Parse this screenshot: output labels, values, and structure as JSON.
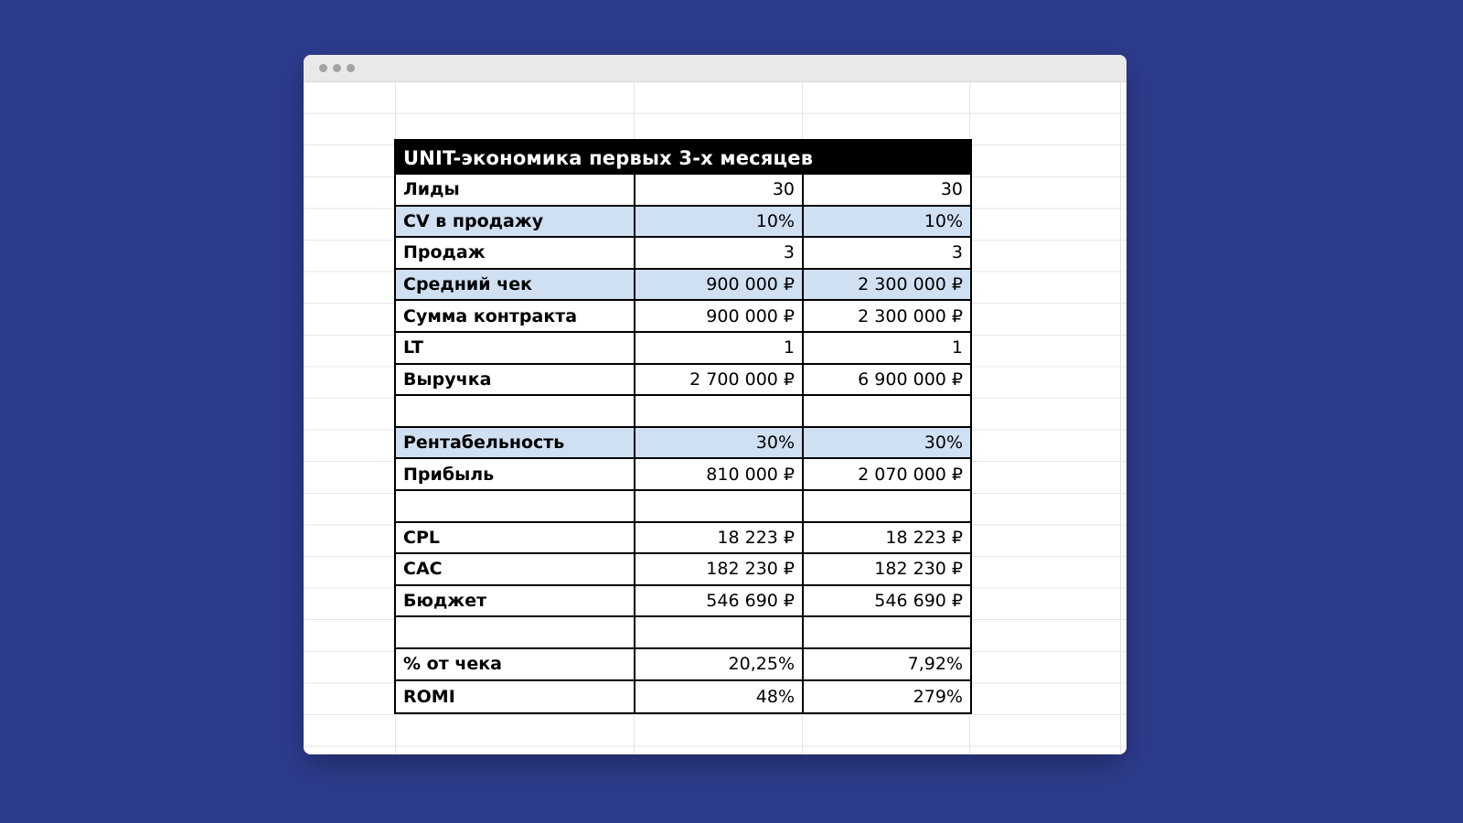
{
  "colors": {
    "desktop_background": "#2e3c8e",
    "table_header_bg": "#000000",
    "row_highlight": "#cfe0f3",
    "gridline": "#e5e5e5"
  },
  "window": {
    "titlebar_dots": 3
  },
  "table": {
    "title": "UNIT-экономика первых 3-х месяцев",
    "rows": [
      {
        "label": "Лиды",
        "v1": "30",
        "v2": "30",
        "highlight": false
      },
      {
        "label": "CV в продажу",
        "v1": "10%",
        "v2": "10%",
        "highlight": true
      },
      {
        "label": "Продаж",
        "v1": "3",
        "v2": "3",
        "highlight": false
      },
      {
        "label": "Средний чек",
        "v1": "900 000 ₽",
        "v2": "2 300 000 ₽",
        "highlight": true
      },
      {
        "label": "Сумма контракта",
        "v1": "900 000 ₽",
        "v2": "2 300 000 ₽",
        "highlight": false
      },
      {
        "label": "LT",
        "v1": "1",
        "v2": "1",
        "highlight": false
      },
      {
        "label": "Выручка",
        "v1": "2 700 000 ₽",
        "v2": "6 900 000 ₽",
        "highlight": false
      },
      {
        "label": "",
        "v1": "",
        "v2": "",
        "highlight": false
      },
      {
        "label": "Рентабельность",
        "v1": "30%",
        "v2": "30%",
        "highlight": true
      },
      {
        "label": "Прибыль",
        "v1": "810 000 ₽",
        "v2": "2 070 000 ₽",
        "highlight": false
      },
      {
        "label": "",
        "v1": "",
        "v2": "",
        "highlight": false
      },
      {
        "label": "CPL",
        "v1": "18 223 ₽",
        "v2": "18 223 ₽",
        "highlight": false
      },
      {
        "label": "CAC",
        "v1": "182 230 ₽",
        "v2": "182 230 ₽",
        "highlight": false
      },
      {
        "label": "Бюджет",
        "v1": "546 690 ₽",
        "v2": "546 690 ₽",
        "highlight": false
      },
      {
        "label": "",
        "v1": "",
        "v2": "",
        "highlight": false
      },
      {
        "label": "% от чека",
        "v1": "20,25%",
        "v2": "7,92%",
        "highlight": false
      },
      {
        "label": "ROMI",
        "v1": "48%",
        "v2": "279%",
        "highlight": false
      }
    ]
  }
}
